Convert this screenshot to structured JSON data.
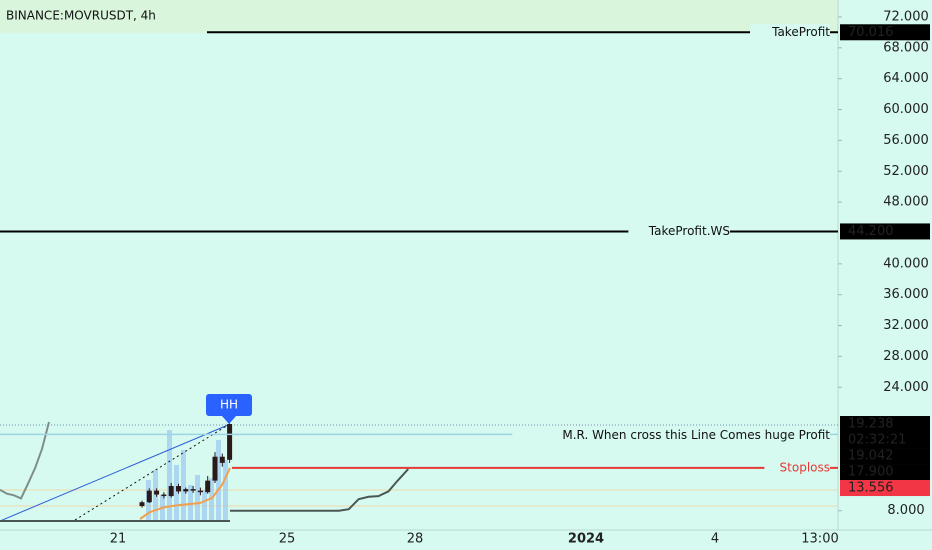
{
  "chart_data": {
    "type": "candlestick",
    "title": "BINANCE:MOVRUSDT, 4h",
    "ylim": [
      5.5,
      74.2
    ],
    "yticks": [
      {
        "value": 72,
        "label": "72.000"
      },
      {
        "value": 68,
        "label": "68.000"
      },
      {
        "value": 64,
        "label": "64.000"
      },
      {
        "value": 60,
        "label": "60.000"
      },
      {
        "value": 56,
        "label": "56.000"
      },
      {
        "value": 52,
        "label": "52.000"
      },
      {
        "value": 48,
        "label": "48.000"
      },
      {
        "value": 40,
        "label": "40.000"
      },
      {
        "value": 36,
        "label": "36.000"
      },
      {
        "value": 32,
        "label": "32.000"
      },
      {
        "value": 28,
        "label": "28.000"
      },
      {
        "value": 24,
        "label": "24.000"
      },
      {
        "value": 8,
        "label": "8.000"
      }
    ],
    "xlabels": [
      "21",
      "25",
      "28",
      "2024",
      "4",
      "13:00"
    ],
    "candles": {
      "open": [
        8.6,
        9.1,
        10.6,
        10.1,
        9.9,
        11.2,
        10.5,
        10.8,
        10.6,
        10.4,
        11.9,
        15.0,
        14.6
      ],
      "high": [
        9.3,
        10.9,
        10.9,
        10.4,
        11.6,
        11.5,
        11.0,
        11.2,
        11.0,
        12.5,
        15.6,
        15.4,
        19.3
      ],
      "low": [
        8.4,
        9.0,
        9.8,
        9.6,
        9.7,
        10.2,
        10.2,
        10.3,
        10.0,
        10.2,
        11.6,
        13.7,
        14.2
      ],
      "close": [
        9.1,
        10.6,
        10.1,
        9.9,
        11.2,
        10.5,
        10.8,
        10.6,
        10.4,
        11.9,
        15.0,
        14.2,
        19.238
      ],
      "color": "#2a1a1a"
    },
    "series": [
      {
        "color": "#7f8c8a",
        "values": [
          10.7,
          10.2,
          10.0,
          9.6,
          11.5,
          13.5,
          16.0,
          19.5
        ]
      },
      {
        "color": "#4a5654",
        "values": [
          8.0,
          8.0,
          8.0,
          8.0,
          8.0,
          8.0,
          8.0,
          8.0,
          8.0,
          8.0,
          8.0,
          8.0,
          8.2,
          9.5,
          9.8,
          9.9,
          10.5,
          12.0,
          13.4
        ]
      }
    ],
    "marker": "HH",
    "levels": [
      {
        "name": "TakeProfit",
        "value": 70.016,
        "value_label": "70.016",
        "color": "#000000",
        "box": "#000000"
      },
      {
        "name": "TakeProfit.WS",
        "value": 44.2,
        "value_label": "44.200",
        "color": "#000000",
        "box": "#000000"
      },
      {
        "name": "M.R. When cross this Line Comes huge Profit",
        "value": 17.9,
        "value_label": "17.900",
        "color": "#9ed3e6",
        "box": "#000000"
      },
      {
        "name": "Stoploss",
        "value": 13.556,
        "value_label": "13.556",
        "color": "#e53935",
        "box": "#f23645"
      }
    ],
    "last_price": {
      "value": 19.238,
      "value_label": "19.238",
      "countdown": "02:32:21"
    },
    "indicator_price": {
      "value": 19.042,
      "value_label": "19.042"
    }
  }
}
